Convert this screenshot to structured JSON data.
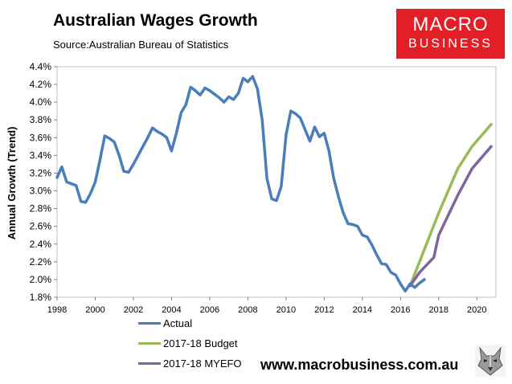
{
  "chart_data": {
    "type": "line",
    "title": "Australian Wages Growth",
    "subtitle": "Source:Australian Bureau of Statistics",
    "xlabel": "",
    "ylabel": "Annual Growth (Trend)",
    "xlim": [
      1998,
      2021
    ],
    "ylim": [
      1.8,
      4.4
    ],
    "x_ticks": [
      1998,
      2000,
      2002,
      2004,
      2006,
      2008,
      2010,
      2012,
      2014,
      2016,
      2018,
      2020
    ],
    "y_ticks": [
      1.8,
      2.0,
      2.2,
      2.4,
      2.6,
      2.8,
      3.0,
      3.2,
      3.4,
      3.6,
      3.8,
      4.0,
      4.2,
      4.4
    ],
    "y_tick_labels": [
      "1.8%",
      "2.0%",
      "2.2%",
      "2.4%",
      "2.6%",
      "2.8%",
      "3.0%",
      "3.2%",
      "3.4%",
      "3.6%",
      "3.8%",
      "4.0%",
      "4.2%",
      "4.4%"
    ],
    "grid": false,
    "legend_position": "bottom-left",
    "series": [
      {
        "name": "Actual",
        "color": "#4a7ebb",
        "x": [
          1998.0,
          1998.25,
          1998.5,
          1998.75,
          1999.0,
          1999.25,
          1999.5,
          1999.75,
          2000.0,
          2000.25,
          2000.5,
          2000.75,
          2001.0,
          2001.25,
          2001.5,
          2001.75,
          2002.0,
          2002.25,
          2002.5,
          2002.75,
          2003.0,
          2003.25,
          2003.5,
          2003.75,
          2004.0,
          2004.25,
          2004.5,
          2004.75,
          2005.0,
          2005.25,
          2005.5,
          2005.75,
          2006.0,
          2006.25,
          2006.5,
          2006.75,
          2007.0,
          2007.25,
          2007.5,
          2007.75,
          2008.0,
          2008.25,
          2008.5,
          2008.75,
          2009.0,
          2009.25,
          2009.5,
          2009.75,
          2010.0,
          2010.25,
          2010.5,
          2010.75,
          2011.0,
          2011.25,
          2011.5,
          2011.75,
          2012.0,
          2012.25,
          2012.5,
          2012.75,
          2013.0,
          2013.25,
          2013.5,
          2013.75,
          2014.0,
          2014.25,
          2014.5,
          2014.75,
          2015.0,
          2015.25,
          2015.5,
          2015.75,
          2016.0,
          2016.25,
          2016.5,
          2016.75,
          2017.0,
          2017.25
        ],
        "values": [
          3.15,
          3.27,
          3.1,
          3.08,
          3.06,
          2.88,
          2.87,
          2.97,
          3.1,
          3.35,
          3.62,
          3.59,
          3.55,
          3.4,
          3.22,
          3.21,
          3.3,
          3.4,
          3.5,
          3.6,
          3.71,
          3.67,
          3.64,
          3.6,
          3.45,
          3.65,
          3.88,
          3.97,
          4.17,
          4.13,
          4.08,
          4.16,
          4.13,
          4.09,
          4.05,
          4.0,
          4.06,
          4.03,
          4.1,
          4.27,
          4.23,
          4.29,
          4.15,
          3.8,
          3.14,
          2.91,
          2.89,
          3.05,
          3.63,
          3.9,
          3.87,
          3.82,
          3.69,
          3.56,
          3.72,
          3.61,
          3.65,
          3.45,
          3.14,
          2.93,
          2.75,
          2.63,
          2.62,
          2.6,
          2.5,
          2.48,
          2.39,
          2.28,
          2.18,
          2.17,
          2.08,
          2.05,
          1.95,
          1.87,
          1.95,
          1.91,
          1.96,
          2.0
        ]
      },
      {
        "name": "2017-18 Budget",
        "color": "#9bbb59",
        "x": [
          2016.5,
          2017.0,
          2018.0,
          2019.0,
          2019.75,
          2020.75
        ],
        "values": [
          1.93,
          2.2,
          2.75,
          3.25,
          3.5,
          3.75
        ]
      },
      {
        "name": "2017-18 MYEFO",
        "color": "#8064a2",
        "x": [
          2016.5,
          2017.0,
          2017.75,
          2018.0,
          2019.0,
          2019.75,
          2020.75
        ],
        "values": [
          1.93,
          2.08,
          2.25,
          2.5,
          2.95,
          3.25,
          3.5
        ]
      }
    ]
  },
  "branding": {
    "logo_line1": "MACRO",
    "logo_line2": "BUSINESS",
    "website": "www.macrobusiness.com.au",
    "logo_color": "#e41e26",
    "mascot_icon": "wolf-icon"
  }
}
